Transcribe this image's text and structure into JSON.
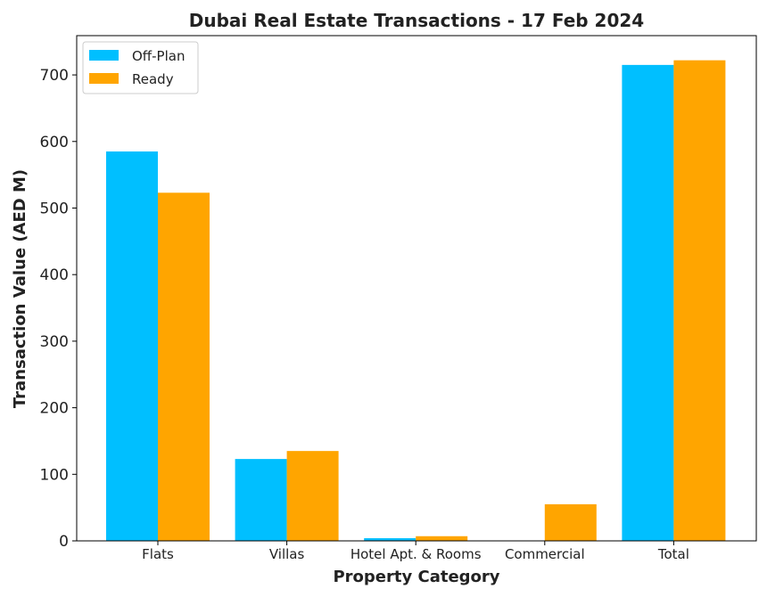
{
  "chart_data": {
    "type": "bar",
    "title": "Dubai Real Estate Transactions - 17 Feb 2024",
    "xlabel": "Property Category",
    "ylabel": "Transaction Value (AED M)",
    "categories": [
      "Flats",
      "Villas",
      "Hotel Apt. & Rooms",
      "Commercial",
      "Total"
    ],
    "series": [
      {
        "name": "Off-Plan",
        "color": "#00BFFF",
        "values": [
          585,
          123,
          4,
          0.5,
          715
        ]
      },
      {
        "name": "Ready",
        "color": "#FFA500",
        "values": [
          523,
          135,
          7,
          55,
          722
        ]
      }
    ],
    "ylim": [
      0,
      759
    ],
    "yticks": [
      0,
      100,
      200,
      300,
      400,
      500,
      600,
      700
    ],
    "grid": false,
    "legend": "top-left"
  }
}
